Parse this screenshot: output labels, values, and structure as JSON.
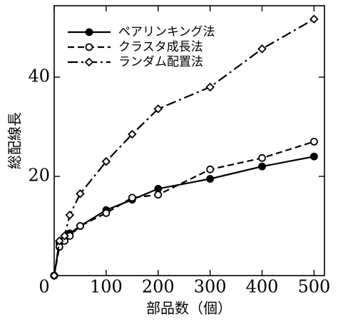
{
  "chart_data": {
    "type": "line",
    "x_label": "部品数（個）",
    "y_label": "総配線長",
    "x": [
      0,
      10,
      20,
      30,
      50,
      100,
      150,
      200,
      300,
      400,
      500
    ],
    "series": [
      {
        "name": "ペアリンキング法",
        "color": "#000000",
        "dash": "solid",
        "marker": "circle-filled",
        "values": [
          0,
          6.6,
          7.5,
          8.5,
          10,
          13.2,
          15.3,
          17.5,
          19.5,
          22,
          24
        ]
      },
      {
        "name": "クラスタ成長法",
        "color": "#000000",
        "dash": "dashed",
        "marker": "circle-open",
        "values": [
          0,
          5.8,
          7,
          8,
          10,
          12.6,
          15.7,
          16.3,
          21.4,
          23.7,
          27
        ]
      },
      {
        "name": "ランダム配置法",
        "color": "#000000",
        "dash": "dashdot",
        "marker": "diamond-open",
        "values": [
          0,
          7,
          8,
          12.2,
          16.5,
          23,
          28.5,
          33.6,
          38,
          45.7,
          51.7
        ]
      }
    ],
    "xlim": [
      0,
      520
    ],
    "ylim": [
      0,
      54.4
    ],
    "xticks": [
      0,
      100,
      200,
      300,
      400,
      500
    ],
    "yticks": [
      20,
      40
    ],
    "legend": "upper-left"
  }
}
